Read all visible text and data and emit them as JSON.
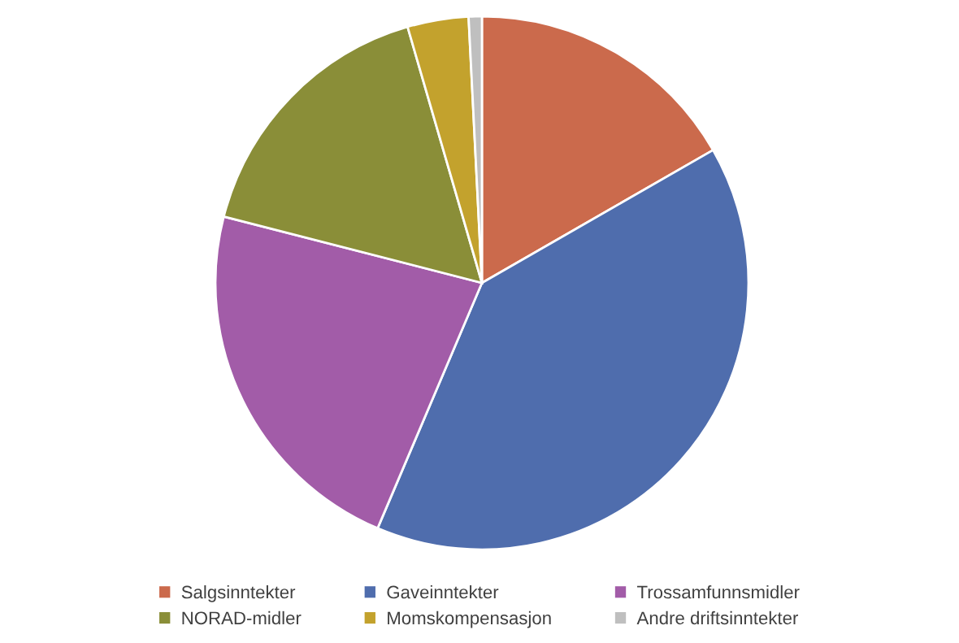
{
  "chart_data": {
    "type": "pie",
    "categories": [
      "Salgsinntekter",
      "Gaveinntekter",
      "Trossamfunnsmidler",
      "NORAD-midler",
      "Momskompensasjon",
      "Andre driftsinntekter"
    ],
    "values": [
      16.7,
      39.7,
      22.6,
      16.5,
      3.7,
      0.8
    ],
    "colors": [
      "#cb6a4c",
      "#4f6dad",
      "#a25ca8",
      "#8a8e38",
      "#c3a22d",
      "#bfbfbf"
    ],
    "legend": "bottom"
  }
}
